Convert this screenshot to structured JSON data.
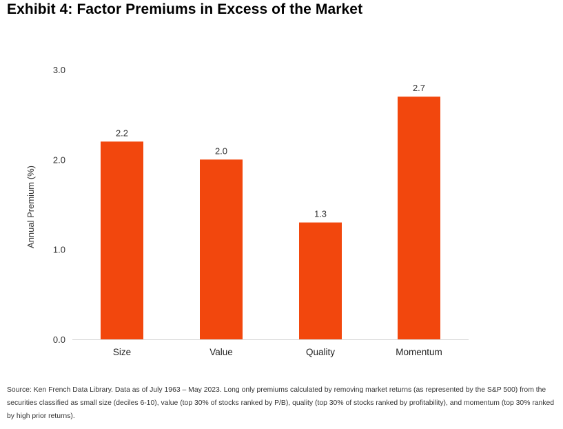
{
  "title": "Exhibit 4: Factor Premiums in Excess of the Market",
  "source_note": "Source: Ken French Data Library. Data as of July 1963 – May 2023. Long only premiums calculated by removing market returns (as represented by the S&P 500) from the securities classified as small size (deciles 6-10), value (top 30% of stocks ranked by P/B), quality (top 30% of stocks ranked by profitability), and momentum (top 30% ranked by high prior returns).",
  "chart_data": {
    "type": "bar",
    "categories": [
      "Size",
      "Value",
      "Quality",
      "Momentum"
    ],
    "values": [
      2.2,
      2.0,
      1.3,
      2.7
    ],
    "value_labels": [
      "2.2",
      "2.0",
      "1.3",
      "2.7"
    ],
    "ylabel": "Annual Premium (%)",
    "xlabel": "",
    "ylim": [
      0,
      3.0
    ],
    "yticks": [
      0,
      1,
      2,
      3
    ],
    "ytick_labels": [
      "0.0",
      "1.0",
      "2.0",
      "3.0"
    ],
    "grid": false,
    "bar_color": "#f2470d",
    "axis_color": "#d9d9d9"
  }
}
